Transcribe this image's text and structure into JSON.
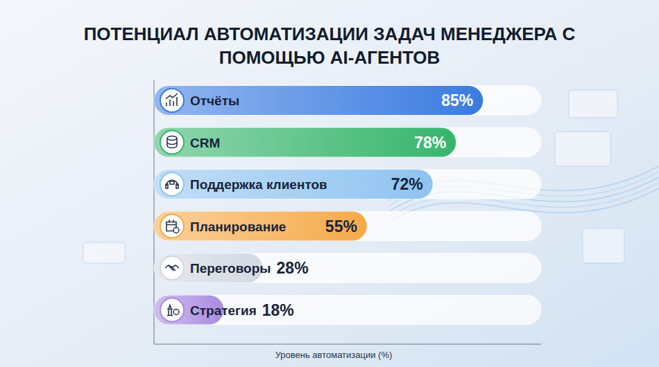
{
  "chart_data": {
    "type": "bar",
    "orientation": "horizontal",
    "title": "ПОТЕНЦИАЛ АВТОМАТИЗАЦИИ ЗАДАЧ МЕНЕДЖЕРА С ПОМОЩЬЮ AI-АГЕНТОВ",
    "x_label": "Уровень автоматизации (%)",
    "categories": [
      "Отчёты",
      "CRM",
      "Поддержка клиентов",
      "Планирование",
      "Переговоры",
      "Стратегия"
    ],
    "values": [
      85,
      78,
      72,
      55,
      28,
      18
    ],
    "value_labels": [
      "85%",
      "78%",
      "72%",
      "55%",
      "28%",
      "18%"
    ],
    "colors": [
      "#3a7be0",
      "#36b56c",
      "#8fc3f0",
      "#f6a94a",
      "#d3d9e1",
      "#a98be0"
    ],
    "xlim": [
      0,
      100
    ],
    "data_labels": true,
    "tick_labels": false,
    "grid": false
  }
}
